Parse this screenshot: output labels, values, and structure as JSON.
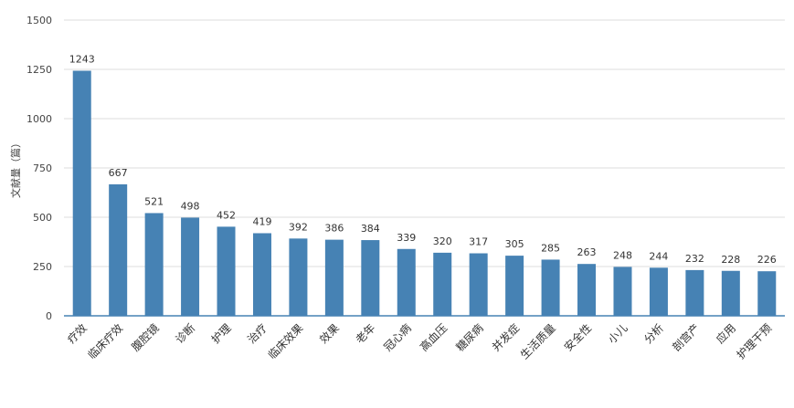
{
  "chart_data": {
    "type": "bar",
    "ylabel": "文献量（篇）",
    "ylim": [
      0,
      1500
    ],
    "yticks": [
      0,
      250,
      500,
      750,
      1000,
      1250,
      1500
    ],
    "grid": true,
    "color": "#4682b4",
    "categories": [
      "疗效",
      "临床疗效",
      "腹腔镜",
      "诊断",
      "护理",
      "治疗",
      "临床效果",
      "效果",
      "老年",
      "冠心病",
      "高血压",
      "糖尿病",
      "并发症",
      "生活质量",
      "安全性",
      "小儿",
      "分析",
      "剖宫产",
      "应用",
      "护理干预"
    ],
    "values": [
      1243,
      667,
      521,
      498,
      452,
      419,
      392,
      386,
      384,
      339,
      320,
      317,
      305,
      285,
      263,
      248,
      244,
      232,
      228,
      226
    ]
  }
}
